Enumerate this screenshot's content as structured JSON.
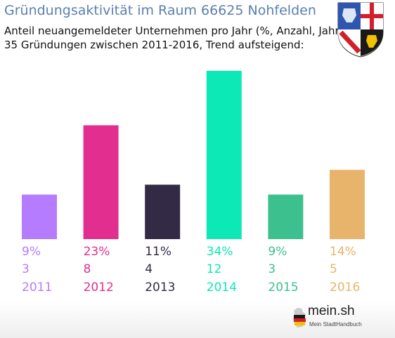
{
  "header": {
    "title": "Gründungsaktivität im Raum 66625 Nohfelden",
    "subtitle_1": "Anteil neuangemeldeter Unternehmen pro Jahr (%, Anzahl, Jahr)",
    "subtitle_2": "35 Gründungen zwischen 2011-2016, Trend aufsteigend:"
  },
  "chart_data": {
    "type": "bar",
    "categories": [
      "2011",
      "2012",
      "2013",
      "2014",
      "2015",
      "2016"
    ],
    "values": [
      9,
      23,
      11,
      34,
      9,
      14
    ],
    "percent_labels": [
      "9%",
      "23%",
      "11%",
      "34%",
      "9%",
      "14%"
    ],
    "counts": [
      "3",
      "8",
      "4",
      "12",
      "3",
      "5"
    ],
    "colors": [
      "#b57cff",
      "#e22f8f",
      "#332a45",
      "#0de8b7",
      "#3cc08e",
      "#e8b46b"
    ],
    "ylim": [
      0,
      34
    ],
    "grid": false,
    "legend": "none"
  },
  "footer": {
    "logo_text": "mein.sh",
    "logo_tagline": "Mein StadtHandbuch"
  }
}
